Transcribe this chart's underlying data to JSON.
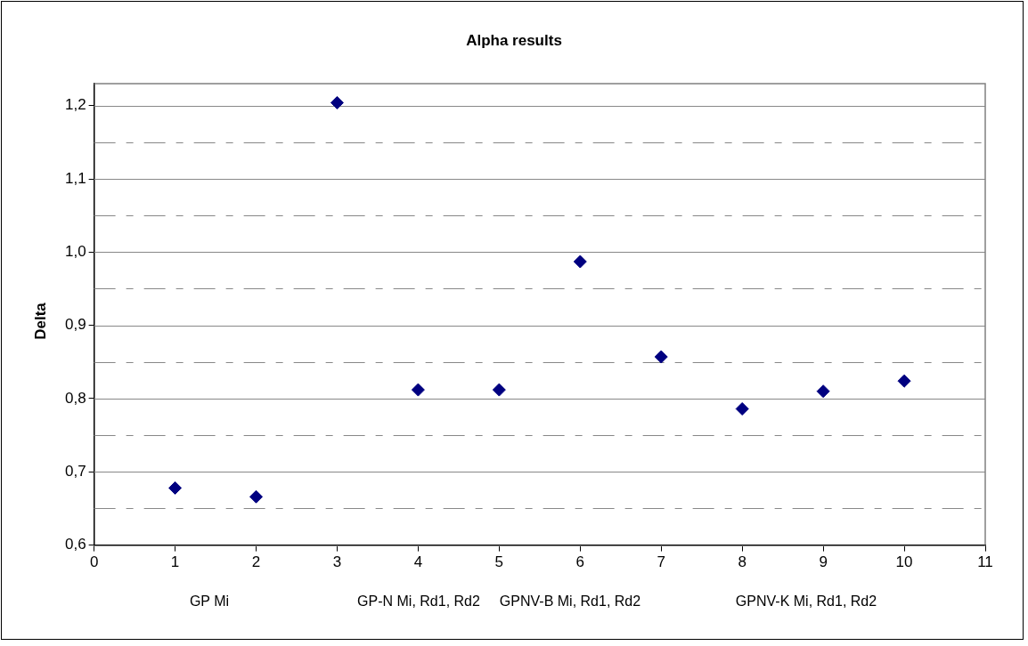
{
  "chart_data": {
    "type": "scatter",
    "title": "Alpha results",
    "ylabel": "Delta",
    "x": [
      1,
      2,
      3,
      4,
      5,
      6,
      7,
      8,
      9,
      10
    ],
    "series": [
      {
        "color": "#000080",
        "values": [
          0.678,
          0.666,
          1.204,
          0.812,
          0.812,
          0.987,
          0.857,
          0.786,
          0.81,
          0.824
        ]
      }
    ],
    "marker": "diamond",
    "xlim": [
      0,
      11
    ],
    "xticks": [
      0,
      1,
      2,
      3,
      4,
      5,
      6,
      7,
      8,
      9,
      10,
      11
    ],
    "ylim": [
      0.6,
      1.23
    ],
    "yticks": [
      {
        "value": 0.6,
        "label": "0,6"
      },
      {
        "value": 0.65,
        "label": null
      },
      {
        "value": 0.7,
        "label": "0,7"
      },
      {
        "value": 0.75,
        "label": null
      },
      {
        "value": 0.8,
        "label": "0,8"
      },
      {
        "value": 0.85,
        "label": null
      },
      {
        "value": 0.9,
        "label": "0,9"
      },
      {
        "value": 0.95,
        "label": null
      },
      {
        "value": 1.0,
        "label": "1,0"
      },
      {
        "value": 1.05,
        "label": null
      },
      {
        "value": 1.1,
        "label": "1,1"
      },
      {
        "value": 1.15,
        "label": null
      },
      {
        "value": 1.2,
        "label": "1,2"
      }
    ],
    "grid": "y",
    "legend": false,
    "annotations": [
      "GP Mi",
      "GP-N Mi, Rd1, Rd2",
      "GPNV-B Mi, Rd1, Rd2",
      "GPNV-K Mi, Rd1, Rd2"
    ]
  }
}
